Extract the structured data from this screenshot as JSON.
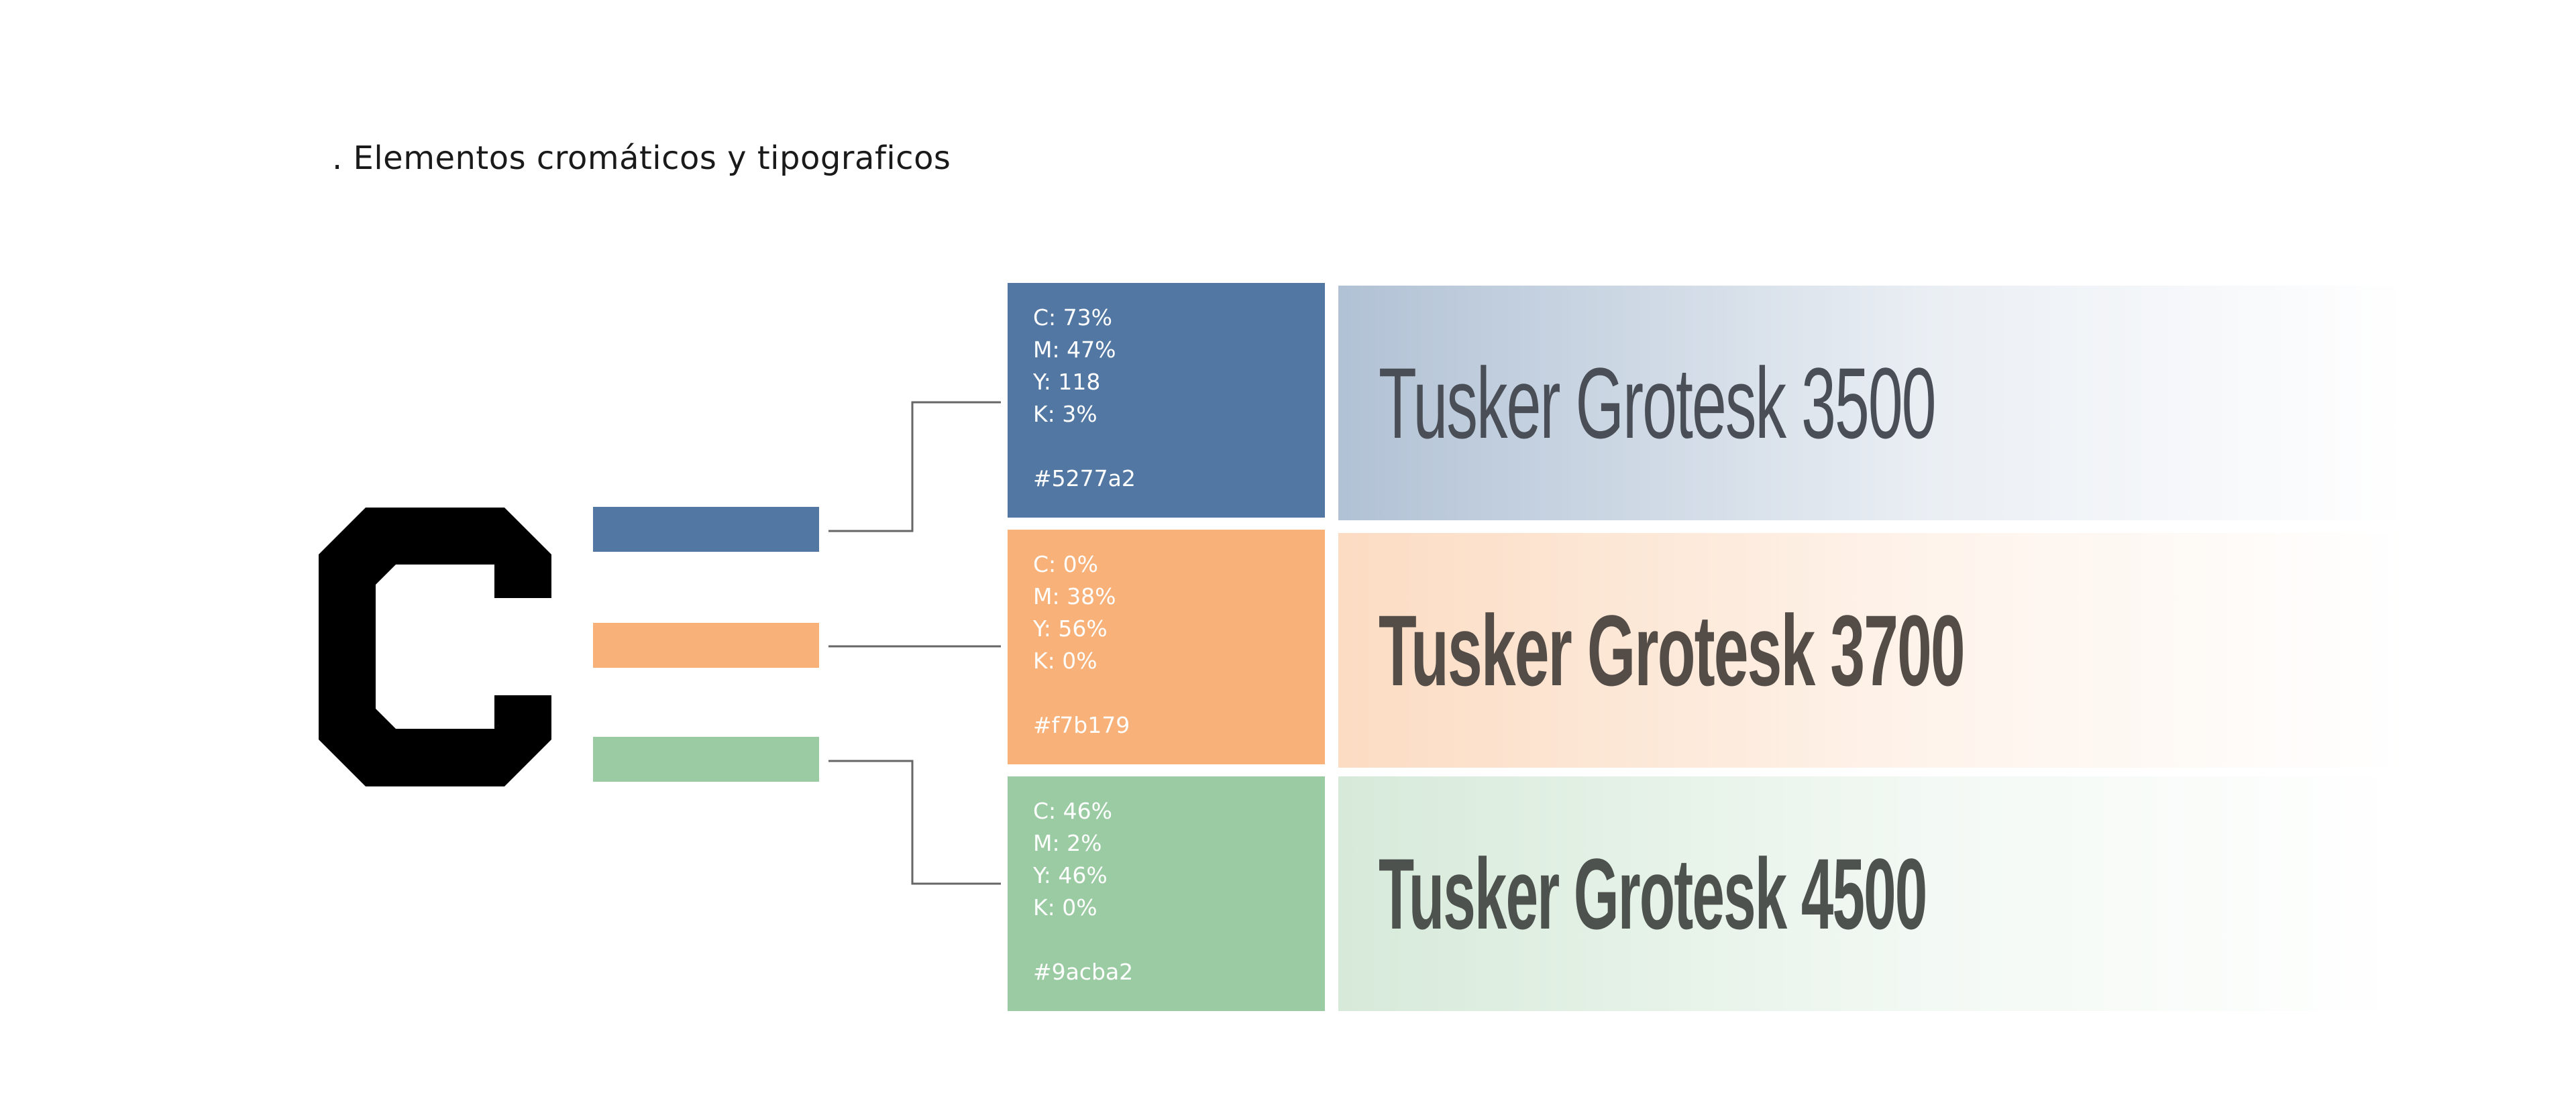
{
  "heading": ". Elementos cromáticos y tipograficos",
  "colors": {
    "blue": "#5277a2",
    "orange": "#f7b179",
    "green": "#9acba2",
    "logo": "#000000",
    "line": "#666666"
  },
  "logo": {
    "icon": "letter-c-logo-icon"
  },
  "swatches": [
    {
      "c": "C: 73%",
      "m": "M: 47%",
      "y": "Y: 118",
      "k": "K: 3%",
      "hex": "#5277a2"
    },
    {
      "c": "C: 0%",
      "m": "M: 38%",
      "y": "Y: 56%",
      "k": "K: 0%",
      "hex": "#f7b179"
    },
    {
      "c": "C: 46%",
      "m": "M: 2%",
      "y": "Y: 46%",
      "k": "K: 0%",
      "hex": "#9acba2"
    }
  ],
  "fonts": [
    {
      "label": "Tusker Grotesk 3500"
    },
    {
      "label": "Tusker Grotesk 3700"
    },
    {
      "label": "Tusker Grotesk 4500"
    }
  ]
}
